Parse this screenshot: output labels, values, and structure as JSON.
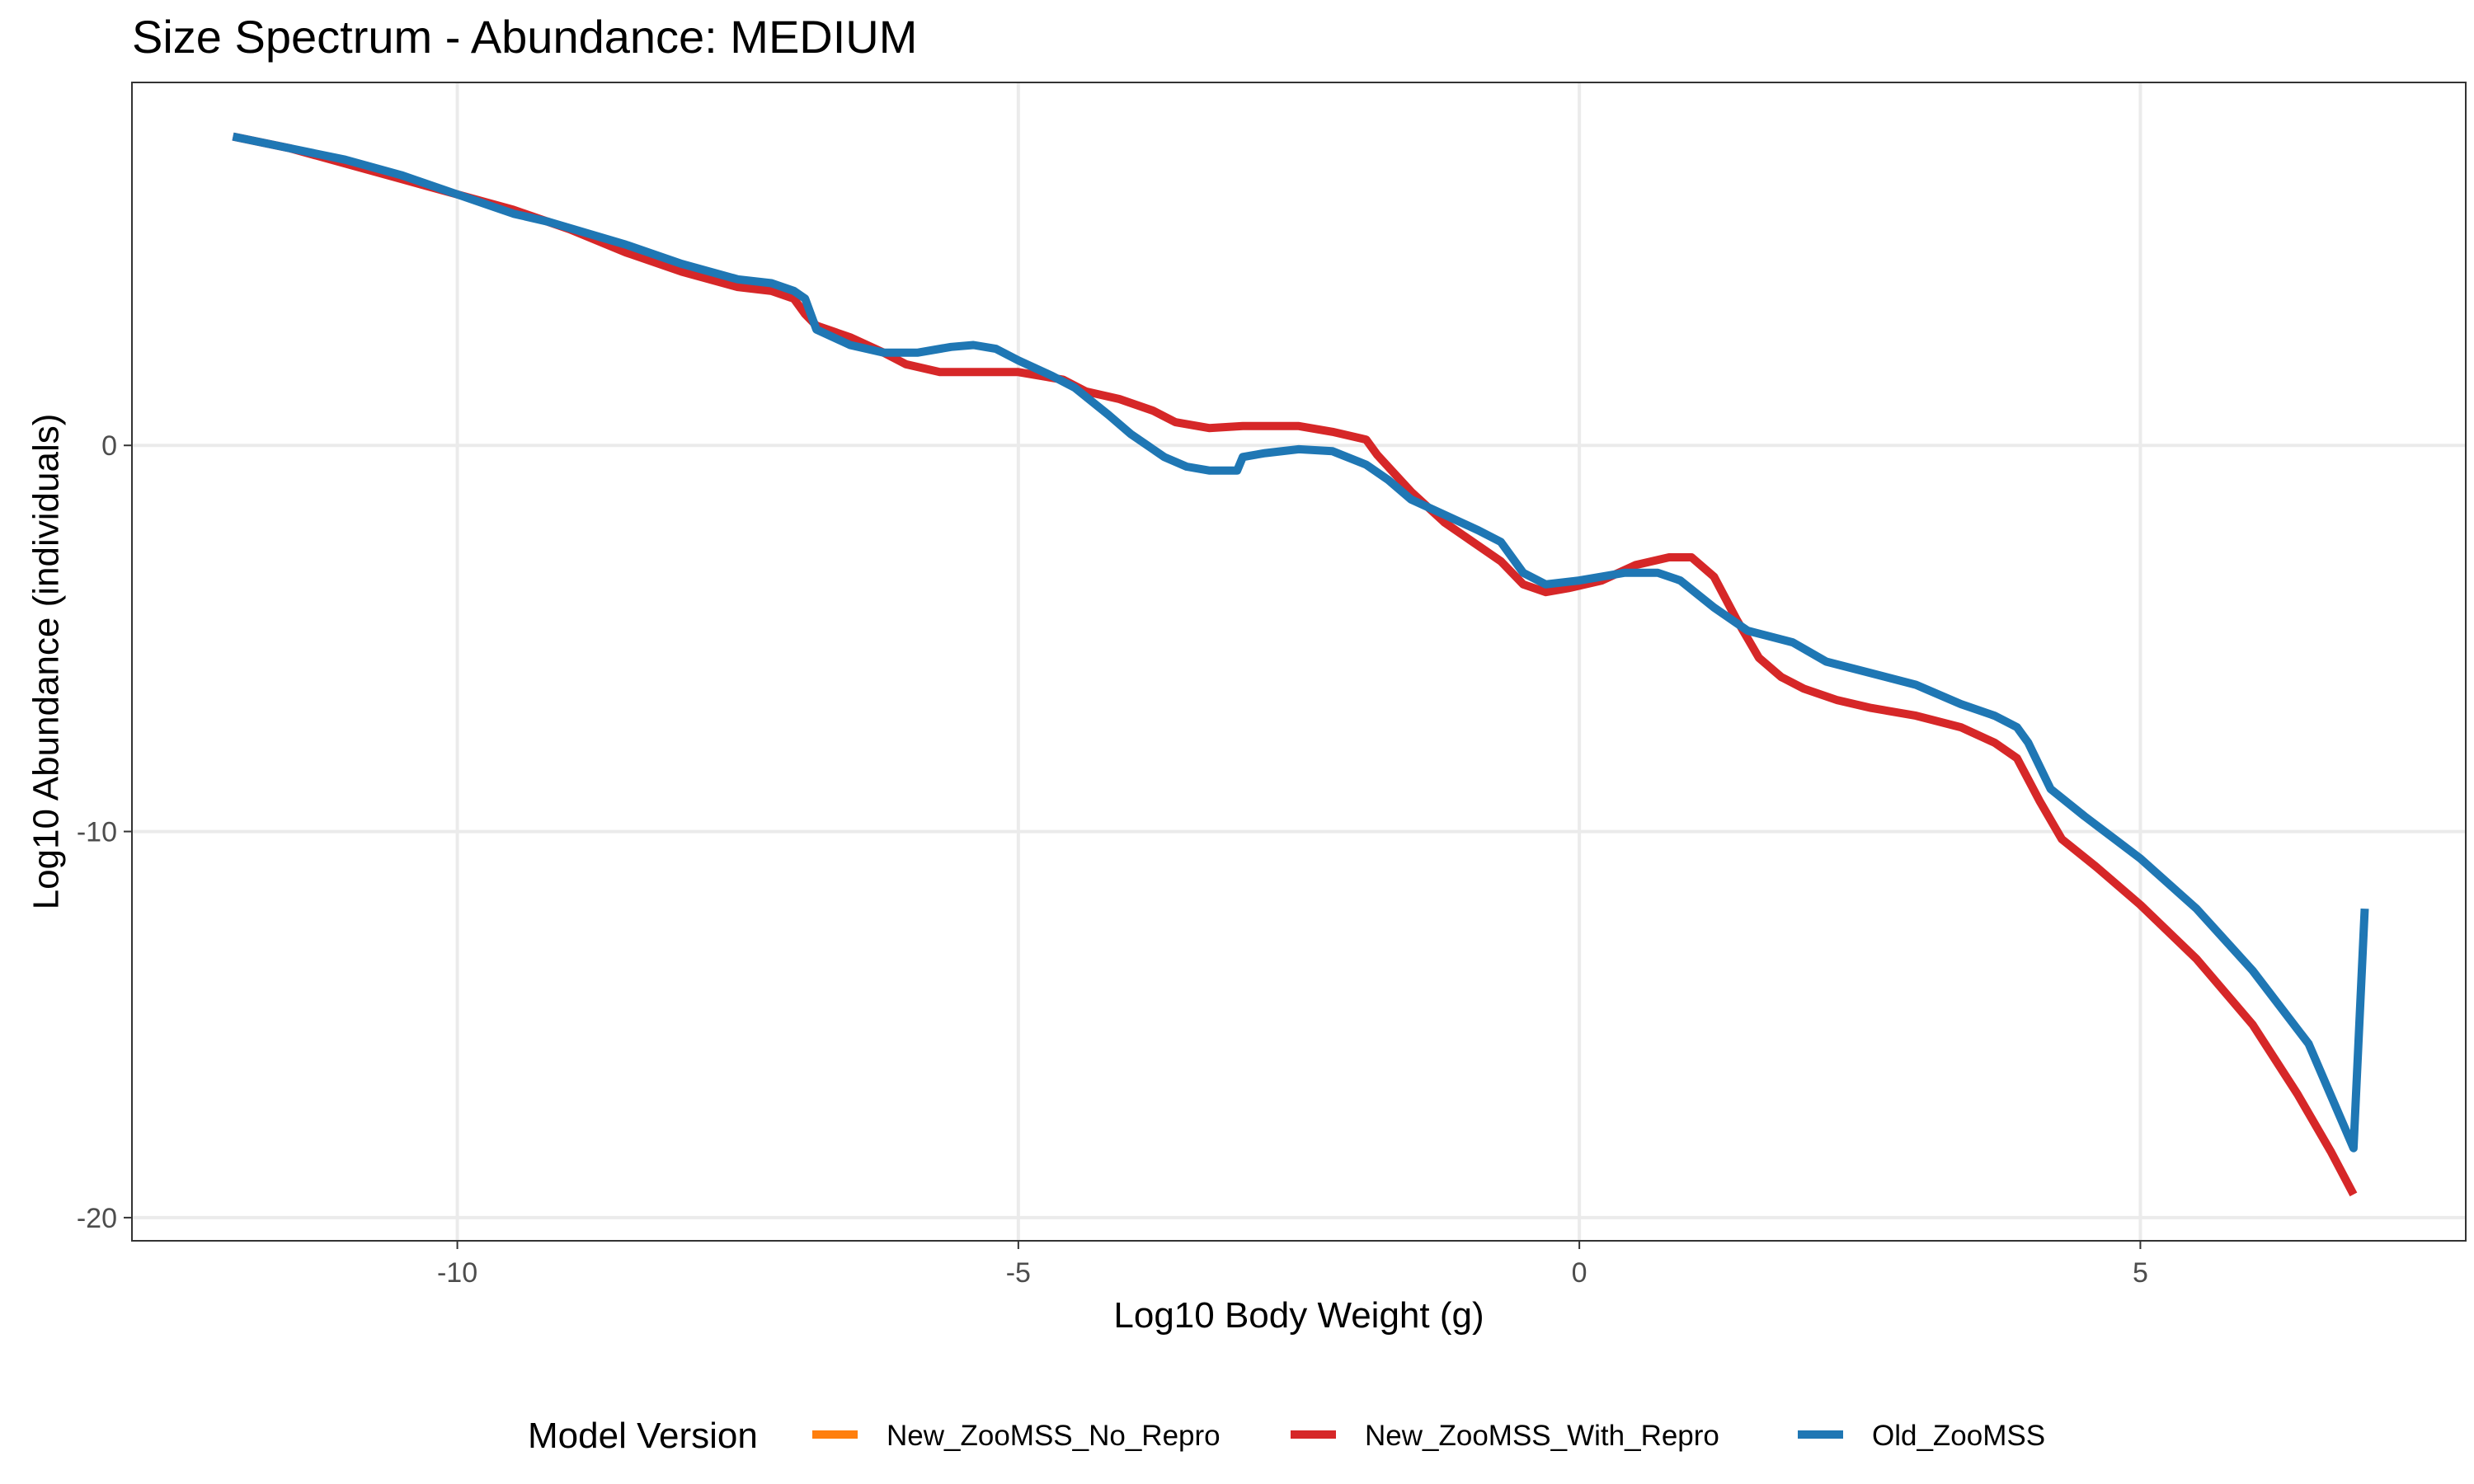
{
  "chart_data": {
    "type": "line",
    "title": "Size Spectrum - Abundance: MEDIUM",
    "xlabel": "Log10 Body Weight (g)",
    "ylabel": "Log10 Abundance (individuals)",
    "xlim": [
      -12.9,
      7.9
    ],
    "ylim": [
      -20.6,
      9.4
    ],
    "x_ticks": [
      -10,
      -5,
      0,
      5
    ],
    "x_tick_labels": [
      "-10",
      "-5",
      "0",
      "5"
    ],
    "y_ticks": [
      0,
      -10,
      -20
    ],
    "y_tick_labels": [
      "0",
      "-10",
      "-20"
    ],
    "grid": true,
    "legend": {
      "title": "Model Version",
      "position": "bottom",
      "items": [
        {
          "label": "New_ZooMSS_No_Repro",
          "color": "#ff7f0e"
        },
        {
          "label": "New_ZooMSS_With_Repro",
          "color": "#d62728"
        },
        {
          "label": "Old_ZooMSS",
          "color": "#1f77b4"
        }
      ]
    },
    "series": [
      {
        "name": "New_ZooMSS_No_Repro",
        "color": "#ff7f0e",
        "x": [],
        "y": []
      },
      {
        "name": "New_ZooMSS_With_Repro",
        "color": "#d62728",
        "x": [
          -12.0,
          -11.5,
          -11.0,
          -10.5,
          -10.0,
          -9.5,
          -9.0,
          -8.5,
          -8.0,
          -7.5,
          -7.2,
          -7.0,
          -6.9,
          -6.8,
          -6.5,
          -6.2,
          -6.0,
          -5.7,
          -5.5,
          -5.0,
          -4.6,
          -4.4,
          -4.1,
          -3.8,
          -3.6,
          -3.3,
          -3.0,
          -2.5,
          -2.2,
          -1.9,
          -1.8,
          -1.5,
          -1.2,
          -0.9,
          -0.7,
          -0.5,
          -0.3,
          -0.1,
          0.2,
          0.5,
          0.8,
          1.0,
          1.2,
          1.4,
          1.6,
          1.8,
          2.0,
          2.3,
          2.6,
          3.0,
          3.4,
          3.7,
          3.9,
          4.1,
          4.3,
          4.6,
          5.0,
          5.5,
          6.0,
          6.4,
          6.7,
          6.9
        ],
        "y": [
          8.0,
          7.7,
          7.3,
          6.9,
          6.5,
          6.1,
          5.6,
          5.0,
          4.5,
          4.1,
          4.0,
          3.8,
          3.4,
          3.1,
          2.8,
          2.4,
          2.1,
          1.9,
          1.9,
          1.9,
          1.7,
          1.4,
          1.2,
          0.9,
          0.6,
          0.45,
          0.5,
          0.5,
          0.35,
          0.15,
          -0.25,
          -1.2,
          -2.0,
          -2.6,
          -3.0,
          -3.6,
          -3.8,
          -3.7,
          -3.5,
          -3.1,
          -2.9,
          -2.9,
          -3.4,
          -4.5,
          -5.5,
          -6.0,
          -6.3,
          -6.6,
          -6.8,
          -7.0,
          -7.3,
          -7.7,
          -8.1,
          -9.2,
          -10.2,
          -10.9,
          -11.9,
          -13.3,
          -15.0,
          -16.8,
          -18.3,
          -19.4
        ]
      },
      {
        "name": "Old_ZooMSS",
        "color": "#1f77b4",
        "x": [
          -12.0,
          -11.5,
          -11.0,
          -10.5,
          -10.0,
          -9.5,
          -9.2,
          -8.5,
          -8.0,
          -7.5,
          -7.2,
          -7.0,
          -6.9,
          -6.8,
          -6.5,
          -6.2,
          -5.9,
          -5.6,
          -5.4,
          -5.2,
          -5.0,
          -4.7,
          -4.5,
          -4.2,
          -4.0,
          -3.7,
          -3.5,
          -3.3,
          -3.1,
          -3.05,
          -3.0,
          -2.8,
          -2.5,
          -2.2,
          -1.9,
          -1.7,
          -1.5,
          -1.2,
          -0.9,
          -0.7,
          -0.5,
          -0.3,
          0.0,
          0.4,
          0.7,
          0.9,
          1.2,
          1.5,
          1.9,
          2.2,
          2.6,
          3.0,
          3.4,
          3.7,
          3.9,
          4.0,
          4.2,
          4.5,
          5.0,
          5.5,
          6.0,
          6.5,
          6.9,
          7.0
        ],
        "y": [
          8.0,
          7.7,
          7.4,
          7.0,
          6.5,
          6.0,
          5.8,
          5.2,
          4.7,
          4.3,
          4.2,
          4.0,
          3.8,
          3.0,
          2.6,
          2.4,
          2.4,
          2.55,
          2.6,
          2.5,
          2.2,
          1.8,
          1.5,
          0.8,
          0.3,
          -0.3,
          -0.55,
          -0.65,
          -0.65,
          -0.65,
          -0.3,
          -0.2,
          -0.1,
          -0.15,
          -0.5,
          -0.9,
          -1.4,
          -1.8,
          -2.2,
          -2.5,
          -3.3,
          -3.6,
          -3.5,
          -3.3,
          -3.3,
          -3.5,
          -4.2,
          -4.8,
          -5.1,
          -5.6,
          -5.9,
          -6.2,
          -6.7,
          -7.0,
          -7.3,
          -7.7,
          -8.9,
          -9.6,
          -10.7,
          -12.0,
          -13.6,
          -15.5,
          -18.2,
          -12.0
        ]
      }
    ]
  }
}
